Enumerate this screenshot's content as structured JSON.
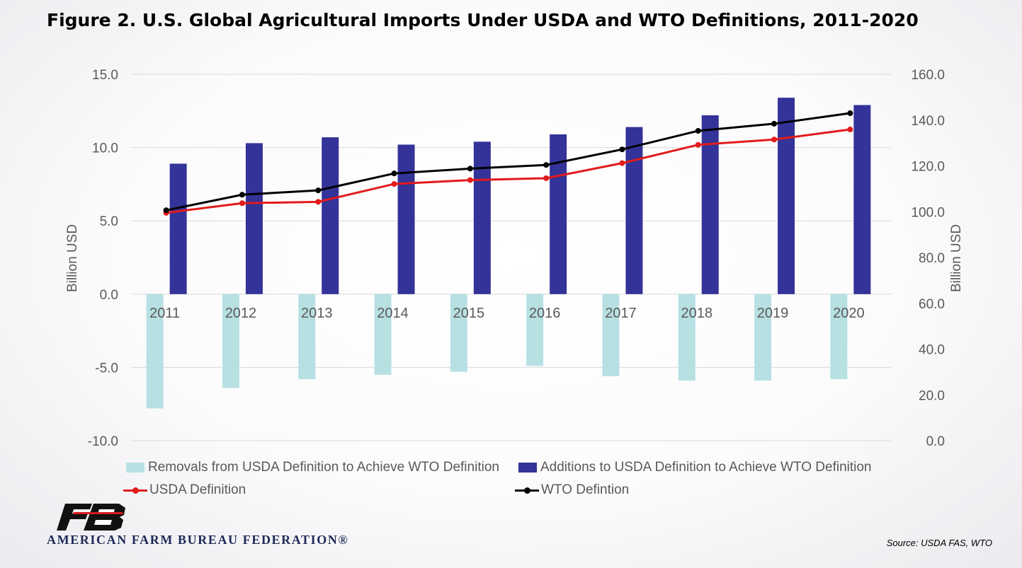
{
  "title": "Figure 2. U.S. Global Agricultural Imports Under USDA and WTO Definitions, 2011-2020",
  "colors": {
    "removals": "#b7e0e2",
    "additions": "#333399",
    "usda": "#e21b1b",
    "wto": "#000000",
    "grid": "#d9d9d9",
    "text": "#595959"
  },
  "chart_data": {
    "type": "bar",
    "categories": [
      "2011",
      "2012",
      "2013",
      "2014",
      "2015",
      "2016",
      "2017",
      "2018",
      "2019",
      "2020"
    ],
    "series": [
      {
        "name": "Removals from USDA Definition to Achieve WTO Definition",
        "type": "bar",
        "axis": "left",
        "values": [
          -7.8,
          -6.4,
          -5.8,
          -5.5,
          -5.3,
          -4.9,
          -5.6,
          -5.9,
          -5.9,
          -5.8
        ]
      },
      {
        "name": "Additions to USDA Definition to Achieve WTO Definition",
        "type": "bar",
        "axis": "left",
        "values": [
          8.9,
          10.3,
          10.7,
          10.2,
          10.4,
          10.9,
          11.4,
          12.2,
          13.4,
          12.9
        ]
      },
      {
        "name": "USDA Definition",
        "type": "line",
        "axis": "right",
        "values": [
          99.5,
          103.7,
          104.3,
          112.1,
          113.8,
          114.6,
          121.2,
          129.2,
          131.5,
          135.9
        ]
      },
      {
        "name": "WTO Defintion",
        "type": "line",
        "axis": "right",
        "values": [
          100.6,
          107.4,
          109.3,
          116.7,
          118.8,
          120.4,
          127.2,
          135.3,
          138.4,
          143.0
        ]
      }
    ],
    "y_left": {
      "label": "Billion USD",
      "min": -10,
      "max": 15,
      "ticks": [
        "15.0",
        "10.0",
        "5.0",
        "0.0",
        "-5.0",
        "-10.0"
      ],
      "tick_values": [
        15,
        10,
        5,
        0,
        -5,
        -10
      ]
    },
    "y_right": {
      "label": "Billion USD",
      "min": 0,
      "max": 160,
      "ticks": [
        "160.0",
        "140.0",
        "120.0",
        "100.0",
        "80.0",
        "60.0",
        "40.0",
        "20.0",
        "0.0"
      ],
      "tick_values": [
        160,
        140,
        120,
        100,
        80,
        60,
        40,
        20,
        0
      ]
    },
    "grid": true,
    "legend_position": "bottom"
  },
  "source": "Source: USDA FAS, WTO",
  "logo": {
    "text": "AMERICAN FARM BUREAU FEDERATION®",
    "mark_text": "FB"
  }
}
